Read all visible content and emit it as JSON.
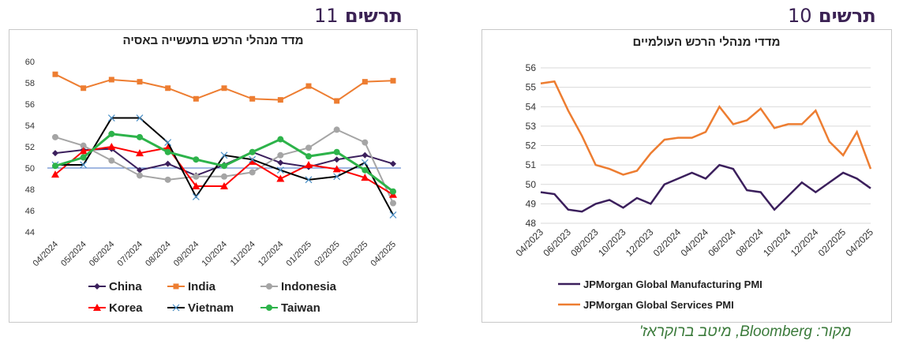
{
  "left_figure": {
    "label": "תרשים",
    "number": "11"
  },
  "right_figure": {
    "label": "תרשים",
    "number": "10"
  },
  "source": "מקור: Bloomberg, מיטב ברוקראז'",
  "chart_data": [
    {
      "type": "line",
      "title": "מדד מנהלי הרכש בתעשייה באסיה",
      "x": [
        "04/2024",
        "05/2024",
        "06/2024",
        "07/2024",
        "08/2024",
        "09/2024",
        "10/2024",
        "11/2024",
        "12/2024",
        "01/2025",
        "02/2025",
        "03/2025",
        "04/2025"
      ],
      "ylim": [
        44,
        60
      ],
      "yticks": [
        44,
        46,
        48,
        50,
        52,
        54,
        56,
        58,
        60
      ],
      "reference_line": 50,
      "grid": false,
      "legend": "bottom",
      "series": [
        {
          "name": "China",
          "color": "#3b1f5c",
          "marker": "diamond",
          "values": [
            51.4,
            51.7,
            51.8,
            49.8,
            50.4,
            49.3,
            50.3,
            51.5,
            50.5,
            50.1,
            50.8,
            51.2,
            50.4
          ]
        },
        {
          "name": "India",
          "color": "#ed7d31",
          "marker": "square",
          "values": [
            58.8,
            57.5,
            58.3,
            58.1,
            57.5,
            56.5,
            57.5,
            56.5,
            56.4,
            57.7,
            56.3,
            58.1,
            58.2
          ]
        },
        {
          "name": "Indonesia",
          "color": "#a5a5a5",
          "marker": "circle",
          "values": [
            52.9,
            52.1,
            50.7,
            49.3,
            48.9,
            49.2,
            49.2,
            49.6,
            51.2,
            51.9,
            53.6,
            52.4,
            46.7
          ]
        },
        {
          "name": "Korea",
          "color": "#ff0000",
          "marker": "triangle",
          "values": [
            49.4,
            51.6,
            52.0,
            51.4,
            51.9,
            48.3,
            48.3,
            50.6,
            49.0,
            50.3,
            49.9,
            49.1,
            47.5
          ]
        },
        {
          "name": "Vietnam",
          "color": "#000000",
          "marker": "x",
          "values": [
            50.3,
            50.3,
            54.7,
            54.7,
            52.4,
            47.3,
            51.2,
            50.8,
            49.8,
            48.9,
            49.2,
            50.5,
            45.6
          ]
        },
        {
          "name": "Taiwan",
          "color": "#2db34a",
          "marker": "circle",
          "values": [
            50.2,
            51.0,
            53.2,
            52.9,
            51.5,
            50.8,
            50.2,
            51.5,
            52.7,
            51.1,
            51.5,
            49.8,
            47.8
          ]
        }
      ]
    },
    {
      "type": "line",
      "title": "מדדי מנהלי הרכש העולמיים",
      "x": [
        "04/2023",
        "05/2023",
        "06/2023",
        "07/2023",
        "08/2023",
        "09/2023",
        "10/2023",
        "11/2023",
        "12/2023",
        "01/2024",
        "02/2024",
        "03/2024",
        "04/2024",
        "05/2024",
        "06/2024",
        "07/2024",
        "08/2024",
        "09/2024",
        "10/2024",
        "11/2024",
        "12/2024",
        "01/2025",
        "02/2025",
        "03/2025",
        "04/2025"
      ],
      "xticks": [
        "04/2023",
        "06/2023",
        "08/2023",
        "10/2023",
        "12/2023",
        "02/2024",
        "04/2024",
        "06/2024",
        "08/2024",
        "10/2024",
        "12/2024",
        "02/2025",
        "04/2025"
      ],
      "ylim": [
        48,
        56
      ],
      "yticks": [
        48,
        49,
        50,
        51,
        52,
        53,
        54,
        55,
        56
      ],
      "grid": true,
      "legend": "bottom",
      "series": [
        {
          "name": "JPMorgan Global Manufacturing PMI",
          "color": "#3b1f5c",
          "values": [
            49.6,
            49.5,
            48.7,
            48.6,
            49.0,
            49.2,
            48.8,
            49.3,
            49.0,
            50.0,
            50.3,
            50.6,
            50.3,
            51.0,
            50.8,
            49.7,
            49.6,
            48.7,
            49.4,
            50.1,
            49.6,
            50.1,
            50.6,
            50.3,
            49.8
          ]
        },
        {
          "name": "JPMorgan Global Services PMI",
          "color": "#ed7d31",
          "values": [
            55.2,
            55.3,
            53.8,
            52.5,
            51.0,
            50.8,
            50.5,
            50.7,
            51.6,
            52.3,
            52.4,
            52.4,
            52.7,
            54.0,
            53.1,
            53.3,
            53.9,
            52.9,
            53.1,
            53.1,
            53.8,
            52.2,
            51.5,
            52.7,
            50.8
          ]
        }
      ]
    }
  ]
}
